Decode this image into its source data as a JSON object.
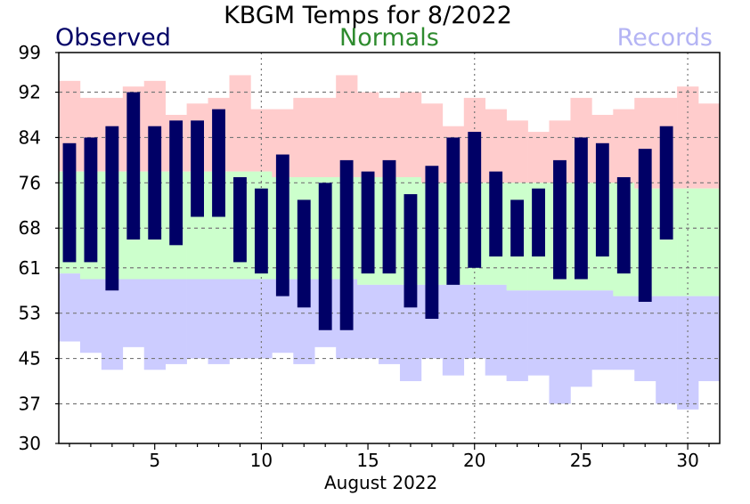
{
  "chart_data": {
    "type": "bar",
    "title": "KBGM Temps for 8/2022",
    "xlabel": "August 2022",
    "ylabel": "",
    "ylim": [
      30,
      99
    ],
    "xlim": [
      0.5,
      31.5
    ],
    "yticks": [
      30,
      37,
      45,
      53,
      61,
      68,
      76,
      84,
      92,
      99
    ],
    "xticks": [
      5,
      10,
      15,
      20,
      25,
      30
    ],
    "grid": true,
    "legend_position": "top",
    "days": [
      1,
      2,
      3,
      4,
      5,
      6,
      7,
      8,
      9,
      10,
      11,
      12,
      13,
      14,
      15,
      16,
      17,
      18,
      19,
      20,
      21,
      22,
      23,
      24,
      25,
      26,
      27,
      28,
      29,
      30,
      31
    ],
    "series": [
      {
        "name": "Observed",
        "color": "#000066",
        "high": [
          83,
          84,
          86,
          92,
          86,
          87,
          87,
          89,
          77,
          75,
          81,
          73,
          76,
          80,
          78,
          80,
          74,
          79,
          84,
          85,
          78,
          73,
          75,
          80,
          84,
          83,
          77,
          82,
          86,
          null,
          null
        ],
        "low": [
          62,
          62,
          57,
          66,
          66,
          65,
          70,
          70,
          62,
          60,
          56,
          54,
          50,
          50,
          60,
          60,
          54,
          52,
          58,
          61,
          63,
          63,
          63,
          59,
          59,
          63,
          60,
          55,
          66,
          null,
          null
        ]
      },
      {
        "name": "Normals",
        "color": "#2e8b2e",
        "fill": "#ccffcc",
        "high": [
          78,
          78,
          78,
          78,
          78,
          78,
          78,
          78,
          78,
          78,
          77,
          77,
          77,
          77,
          77,
          77,
          77,
          76,
          76,
          76,
          76,
          76,
          76,
          76,
          76,
          76,
          76,
          75,
          75,
          75,
          75
        ],
        "low": [
          60,
          59,
          59,
          59,
          59,
          59,
          59,
          59,
          59,
          59,
          59,
          59,
          59,
          59,
          58,
          58,
          58,
          58,
          58,
          58,
          58,
          57,
          57,
          57,
          57,
          57,
          56,
          56,
          56,
          56,
          56
        ]
      },
      {
        "name": "Records",
        "color": "#f4a3a3",
        "fill": "#ffcccc",
        "low_fill": "#ccccff",
        "low_label_color": "#b4b4f4",
        "high": [
          94,
          91,
          91,
          93,
          94,
          88,
          90,
          91,
          95,
          89,
          89,
          91,
          91,
          95,
          92,
          91,
          92,
          90,
          86,
          91,
          89,
          87,
          85,
          87,
          91,
          88,
          89,
          91,
          91,
          93,
          90
        ],
        "low": [
          48,
          46,
          43,
          47,
          43,
          44,
          45,
          44,
          45,
          45,
          46,
          44,
          47,
          45,
          45,
          44,
          41,
          45,
          42,
          45,
          42,
          41,
          42,
          37,
          40,
          43,
          43,
          41,
          37,
          36,
          41
        ]
      }
    ]
  }
}
